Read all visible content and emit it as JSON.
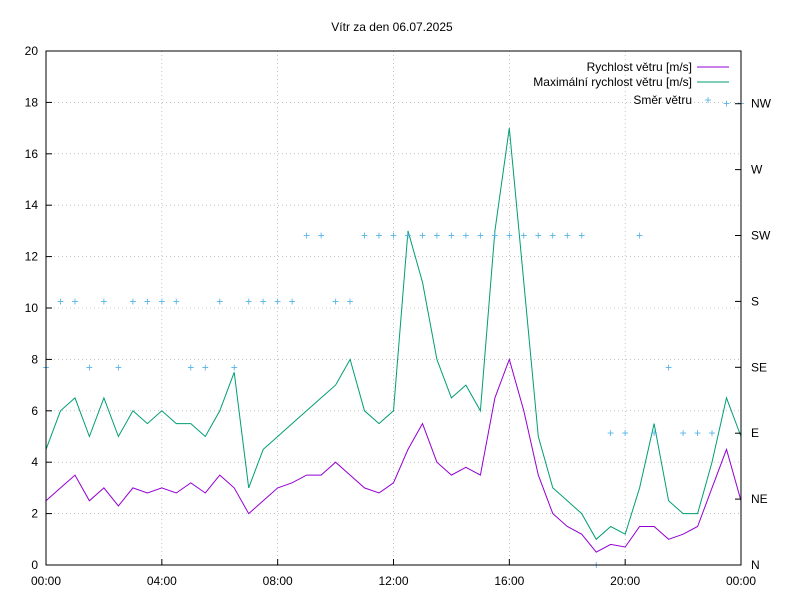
{
  "chart_data": {
    "type": "line",
    "title": "Vítr za den 06.07.2025",
    "x_ticks": [
      "00:00",
      "04:00",
      "08:00",
      "12:00",
      "16:00",
      "20:00",
      "00:00"
    ],
    "x_range_hours": [
      0,
      24
    ],
    "y_ticks": [
      "0",
      "2",
      "4",
      "6",
      "8",
      "10",
      "12",
      "14",
      "16",
      "18",
      "20"
    ],
    "ylim": [
      0,
      20
    ],
    "y2_ticks": [
      "N",
      "NE",
      "E",
      "SE",
      "S",
      "SW",
      "W",
      "NW"
    ],
    "grid": true,
    "legend_position": "top-right",
    "colors": {
      "speed": "#9400d3",
      "gust": "#009e73",
      "direction": "#56b4e9"
    },
    "series": [
      {
        "name": "Rychlost větru [m/s]",
        "x": [
          0,
          0.5,
          1,
          1.5,
          2,
          2.5,
          3,
          3.5,
          4,
          4.5,
          5,
          5.5,
          6,
          6.5,
          7,
          7.5,
          8,
          8.5,
          9,
          9.5,
          10,
          10.5,
          11,
          11.5,
          12,
          12.5,
          13,
          13.5,
          14,
          14.5,
          15,
          15.5,
          16,
          16.5,
          17,
          17.5,
          18,
          18.5,
          19,
          19.5,
          20,
          20.5,
          21,
          21.5,
          22,
          22.5,
          23,
          23.5,
          24
        ],
        "values": [
          2.5,
          3,
          3.5,
          2.5,
          3,
          2.3,
          3,
          2.8,
          3,
          2.8,
          3.2,
          2.8,
          3.5,
          3,
          2,
          2.5,
          3,
          3.2,
          3.5,
          3.5,
          4,
          3.5,
          3,
          2.8,
          3.2,
          4.5,
          5.5,
          4,
          3.5,
          3.8,
          3.5,
          6.5,
          8,
          6,
          3.5,
          2,
          1.5,
          1.2,
          0.5,
          0.8,
          0.7,
          1.5,
          1.5,
          1,
          1.2,
          1.5,
          3,
          4.5,
          2.5
        ]
      },
      {
        "name": "Maximální rychlost větru [m/s]",
        "x": [
          0,
          0.5,
          1,
          1.5,
          2,
          2.5,
          3,
          3.5,
          4,
          4.5,
          5,
          5.5,
          6,
          6.5,
          7,
          7.5,
          8,
          8.5,
          9,
          9.5,
          10,
          10.5,
          11,
          11.5,
          12,
          12.5,
          13,
          13.5,
          14,
          14.5,
          15,
          15.5,
          16,
          16.5,
          17,
          17.5,
          18,
          18.5,
          19,
          19.5,
          20,
          20.5,
          21,
          21.5,
          22,
          22.5,
          23,
          23.5,
          24
        ],
        "values": [
          4.5,
          6,
          6.5,
          5,
          6.5,
          5,
          6,
          5.5,
          6,
          5.5,
          5.5,
          5,
          6,
          7.5,
          3,
          4.5,
          5,
          5.5,
          6,
          6.5,
          7,
          8,
          6,
          5.5,
          6,
          13,
          11,
          8,
          6.5,
          7,
          6,
          13,
          17,
          11,
          5,
          3,
          2.5,
          2,
          1,
          1.5,
          1.2,
          3,
          5.5,
          2.5,
          2,
          2,
          4,
          6.5,
          5
        ]
      },
      {
        "name": "Směr větru",
        "x": [
          0,
          0.5,
          1,
          1.5,
          2,
          2.5,
          3,
          3.5,
          4,
          4.5,
          5,
          5.5,
          6,
          6.5,
          7,
          7.5,
          8,
          8.5,
          9,
          9.5,
          10,
          10.5,
          11,
          11.5,
          12,
          12.5,
          13,
          13.5,
          14,
          14.5,
          15,
          15.5,
          16,
          16.5,
          17,
          17.5,
          18,
          18.5,
          19,
          19.5,
          20,
          20.5,
          21,
          21.5,
          22,
          22.5,
          23,
          23.5,
          24
        ],
        "values": [
          "SE",
          "S",
          "S",
          "SE",
          "S",
          "SE",
          "S",
          "S",
          "S",
          "S",
          "SE",
          "SE",
          "S",
          "SE",
          "S",
          "S",
          "S",
          "S",
          "SW",
          "SW",
          "S",
          "S",
          "SW",
          "SW",
          "SW",
          "SW",
          "SW",
          "SW",
          "SW",
          "SW",
          "SW",
          "SW",
          "SW",
          "SW",
          "SW",
          "SW",
          "SW",
          "SW",
          "N",
          "E",
          "E",
          "SW",
          "E",
          "SE",
          "E",
          "E",
          "E",
          "NW",
          "NW"
        ]
      }
    ]
  }
}
